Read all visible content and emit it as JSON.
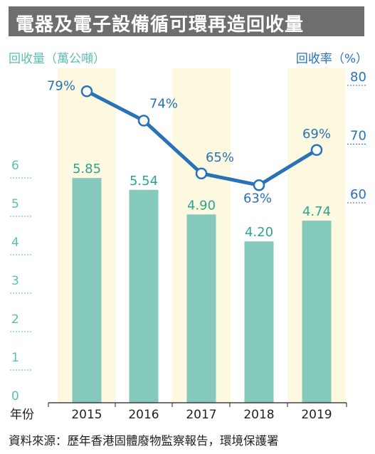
{
  "title": "電器及電子設備循可環再造回收量",
  "left_axis_label": "回收量（萬公噸）",
  "right_axis_label": "回收率（%）",
  "source": "資料來源：歷年香港固體廢物監察報告，環境保護署",
  "colors": {
    "bar": "#85c9bd",
    "bar_label": "#2fa38f",
    "highlight": "#fdf8e0",
    "line": "#2a72b8",
    "left_axis": "#5bbfae",
    "right_axis": "#2a72b8",
    "title_bg": "#6d6e70"
  },
  "chart_data": {
    "type": "bar",
    "xlabel": "年份",
    "categories": [
      "2015",
      "2016",
      "2017",
      "2018",
      "2019"
    ],
    "highlight_categories": [
      "2015",
      "2017",
      "2019"
    ],
    "series": [
      {
        "name": "回收量",
        "axis": "left",
        "type": "bar",
        "values": [
          5.85,
          5.54,
          4.9,
          4.2,
          4.74
        ]
      },
      {
        "name": "回收率",
        "axis": "right",
        "type": "line",
        "values": [
          79,
          74,
          65,
          63,
          69
        ]
      }
    ],
    "left_axis": {
      "ylim": [
        0,
        6
      ],
      "ticks": [
        0,
        1,
        2,
        3,
        4,
        5,
        6
      ]
    },
    "right_axis": {
      "ylim": [
        60,
        80
      ],
      "ticks": [
        60,
        70,
        80
      ]
    },
    "bar_labels": [
      "5.85",
      "5.54",
      "4.90",
      "4.20",
      "4.74"
    ],
    "line_labels": [
      "79%",
      "74%",
      "65%",
      "63%",
      "69%"
    ]
  }
}
